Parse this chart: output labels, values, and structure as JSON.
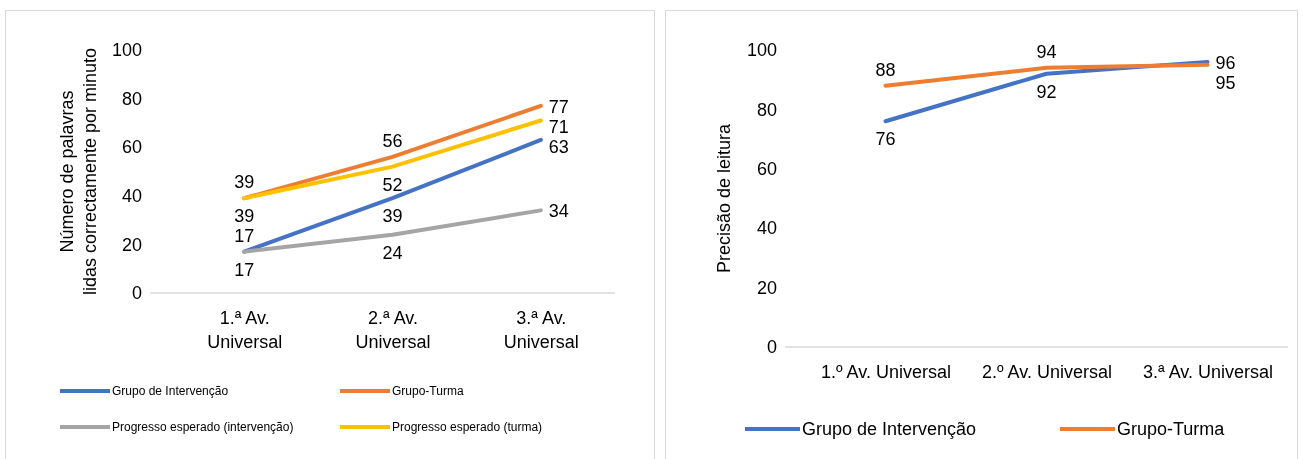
{
  "chart_data": [
    {
      "type": "line",
      "ylabel": "Número de palavras lidas correctamente por minuto",
      "categories": [
        "1.ª Av. Universal",
        "2.ª Av. Universal",
        "3.ª Av. Universal"
      ],
      "series": [
        {
          "name": "Grupo de Intervenção",
          "color": "#4472c4",
          "values": [
            17,
            39,
            63
          ]
        },
        {
          "name": "Grupo-Turma",
          "color": "#ed7d31",
          "values": [
            39,
            56,
            77
          ]
        },
        {
          "name": "Progresso esperado (intervenção)",
          "color": "#a5a5a5",
          "values": [
            17,
            24,
            34
          ]
        },
        {
          "name": "Progresso esperado (turma)",
          "color": "#ffc000",
          "values": [
            39,
            52,
            71
          ]
        }
      ],
      "ylim": [
        0,
        100
      ],
      "yticks": [
        0,
        20,
        40,
        60,
        80,
        100
      ],
      "grid": false,
      "legend": "bottom",
      "data_labels": true,
      "marker": "none"
    },
    {
      "type": "line",
      "ylabel": "Precisão de leitura",
      "categories": [
        "1.º Av. Universal",
        "2.º Av. Universal",
        "3.ª Av. Universal"
      ],
      "series": [
        {
          "name": "Grupo de Intervenção",
          "color": "#4472c4",
          "values": [
            76,
            92,
            96
          ]
        },
        {
          "name": "Grupo-Turma",
          "color": "#ed7d31",
          "values": [
            88,
            94,
            95
          ]
        }
      ],
      "ylim": [
        0,
        100
      ],
      "yticks": [
        0,
        20,
        40,
        60,
        80,
        100
      ],
      "grid": false,
      "legend": "bottom",
      "data_labels": true,
      "marker": "none"
    }
  ]
}
